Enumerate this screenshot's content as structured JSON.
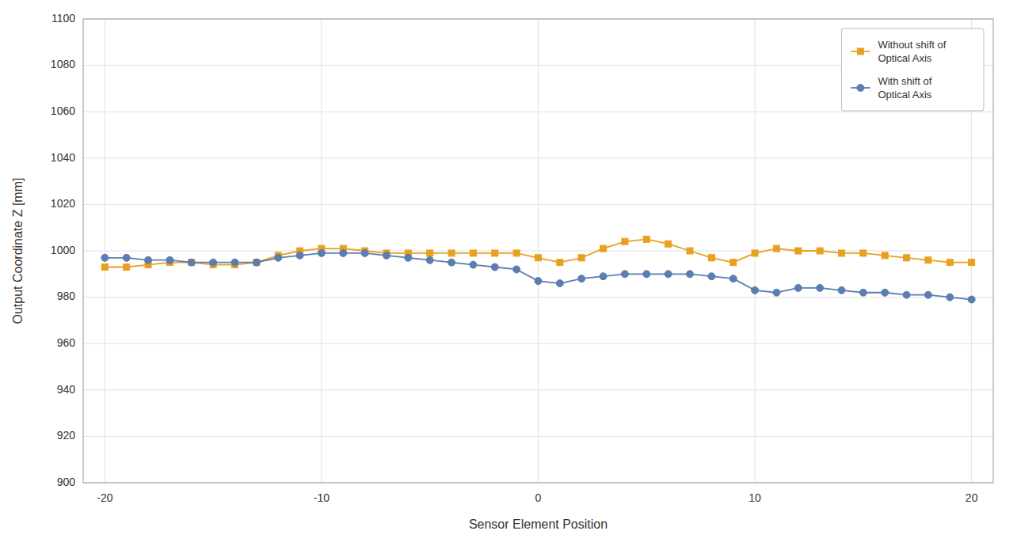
{
  "chart_data": {
    "type": "line",
    "xlabel": "Sensor Element Position",
    "ylabel": "Output Coordinate Z [mm]",
    "x": [
      -20,
      -19,
      -18,
      -17,
      -16,
      -15,
      -14,
      -13,
      -12,
      -11,
      -10,
      -9,
      -8,
      -7,
      -6,
      -5,
      -4,
      -3,
      -2,
      -1,
      0,
      1,
      2,
      3,
      4,
      5,
      6,
      7,
      8,
      9,
      10,
      11,
      12,
      13,
      14,
      15,
      16,
      17,
      18,
      19,
      20
    ],
    "series": [
      {
        "name": "Without shift of\nOptical Axis",
        "color": "#E8A020",
        "marker": "square",
        "values": [
          993,
          993,
          994,
          995,
          995,
          994,
          994,
          995,
          998,
          1000,
          1001,
          1001,
          1000,
          999,
          999,
          999,
          999,
          999,
          999,
          999,
          997,
          995,
          997,
          1001,
          1004,
          1005,
          1003,
          1000,
          997,
          995,
          999,
          1001,
          1000,
          1000,
          999,
          999,
          998,
          997,
          996,
          995,
          995
        ]
      },
      {
        "name": "With shift of\nOptical Axis",
        "color": "#5B7DB1",
        "marker": "circle",
        "values": [
          997,
          997,
          996,
          996,
          995,
          995,
          995,
          995,
          997,
          998,
          999,
          999,
          999,
          998,
          997,
          996,
          995,
          994,
          993,
          992,
          987,
          986,
          988,
          989,
          990,
          990,
          990,
          990,
          989,
          988,
          983,
          982,
          984,
          984,
          983,
          982,
          982,
          981,
          981,
          980,
          979
        ]
      }
    ],
    "xlim": [
      -21,
      21
    ],
    "ylim": [
      900,
      1100
    ],
    "xticks": [
      -20,
      -10,
      0,
      10,
      20
    ],
    "yticks": [
      900,
      920,
      940,
      960,
      980,
      1000,
      1020,
      1040,
      1060,
      1080,
      1100
    ],
    "grid": true,
    "legend": "upper right"
  }
}
